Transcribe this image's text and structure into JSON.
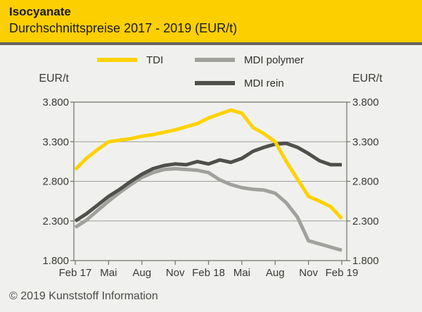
{
  "header": {
    "title": "Isocyanate",
    "subtitle": "Durchschnittspreise 2017 - 2019 (EUR/t)"
  },
  "axis_unit_label": "EUR/t",
  "footer": {
    "copyright": "© 2019 Kunststoff Information"
  },
  "colors": {
    "header_bg": "#fccf00",
    "separator": "#66645e",
    "body_bg": "#f0f1ee",
    "plot_border": "#77776f",
    "gridline": "#9c9c98",
    "axis_text": "#3a3936",
    "title_text": "#1d1a16",
    "footer_text": "#4b4a46",
    "tdi_yellow": "#ffd200",
    "mdi_polymer_gray": "#a0a09d",
    "mdi_rein_gray": "#4f4f4c"
  },
  "chart_data": {
    "type": "line",
    "title": "Isocyanate Durchschnittspreise 2017 - 2019 (EUR/t)",
    "ylabel": "EUR/t",
    "ylim": [
      1800,
      3800
    ],
    "y_ticks": [
      3800,
      3300,
      2800,
      2300,
      1800
    ],
    "y_tick_labels": [
      "3.800",
      "3.300",
      "2.800",
      "2.300",
      "1.800"
    ],
    "x_tick_labels": [
      "Feb 17",
      "Mai",
      "Aug",
      "Nov",
      "Feb 18",
      "Mai",
      "Aug",
      "Nov",
      "Feb 19"
    ],
    "x_tick_indices": [
      0,
      3,
      6,
      9,
      12,
      15,
      18,
      21,
      24
    ],
    "x_range_months": 25,
    "grid": "horizontal",
    "legend_position": "top",
    "series": [
      {
        "name": "MDI polymer",
        "color": "#a0a09d",
        "values": [
          2220,
          2310,
          2430,
          2550,
          2660,
          2760,
          2850,
          2910,
          2950,
          2960,
          2950,
          2940,
          2910,
          2820,
          2760,
          2720,
          2700,
          2690,
          2650,
          2530,
          2350,
          2050,
          2010,
          1970,
          1930
        ]
      },
      {
        "name": "MDI rein",
        "color": "#4f4f4c",
        "values": [
          2300,
          2390,
          2500,
          2610,
          2700,
          2800,
          2890,
          2960,
          3000,
          3020,
          3010,
          3050,
          3020,
          3070,
          3040,
          3090,
          3180,
          3230,
          3270,
          3280,
          3230,
          3150,
          3060,
          3010,
          3010
        ]
      },
      {
        "name": "TDI",
        "color": "#ffd200",
        "values": [
          2950,
          3090,
          3200,
          3300,
          3320,
          3340,
          3370,
          3390,
          3420,
          3450,
          3490,
          3530,
          3600,
          3650,
          3700,
          3660,
          3480,
          3400,
          3300,
          3050,
          2830,
          2610,
          2550,
          2480,
          2330
        ]
      }
    ]
  }
}
